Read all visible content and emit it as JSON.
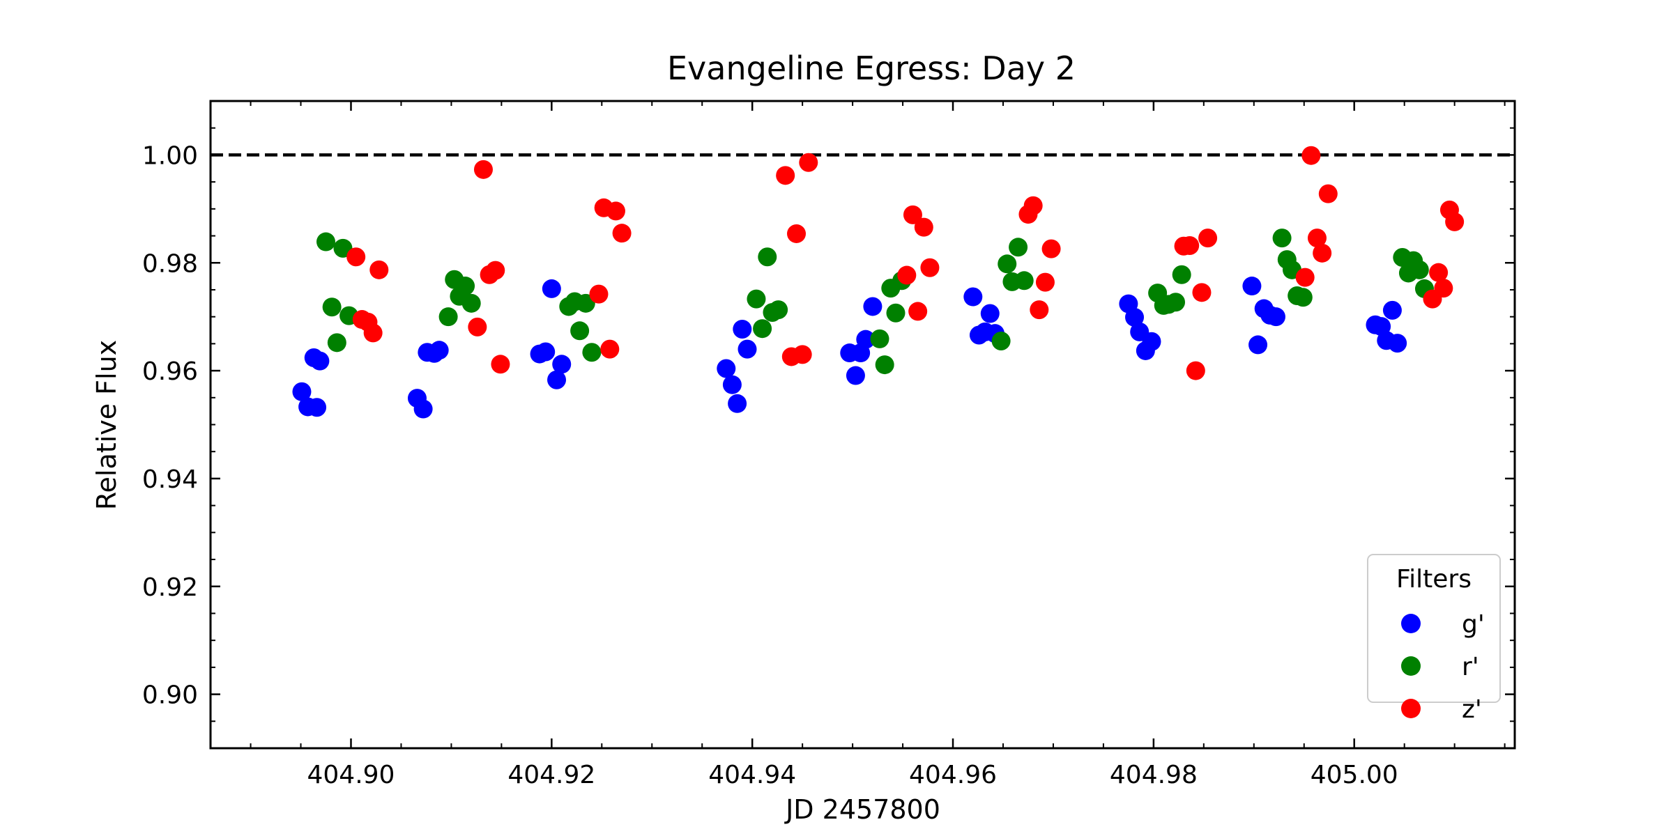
{
  "chart_data": {
    "type": "scatter",
    "title": "Evangeline Egress: Day 2",
    "xlabel": "JD 2457800",
    "ylabel": "Relative Flux",
    "xlim": [
      404.886,
      405.016
    ],
    "ylim": [
      0.89,
      1.01
    ],
    "x_ticks": [
      "404.90",
      "404.92",
      "404.94",
      "404.96",
      "404.98",
      "405.00"
    ],
    "y_ticks": [
      "0.90",
      "0.92",
      "0.94",
      "0.96",
      "0.98",
      "1.00"
    ],
    "reference_line": {
      "y": 1.0,
      "style": "dashed",
      "color": "#000000"
    },
    "legend": {
      "title": "Filters",
      "position": "lower-right"
    },
    "series": [
      {
        "name": "g'",
        "color": "#0000ff",
        "points": [
          [
            404.8951,
            0.9561
          ],
          [
            404.8957,
            0.9533
          ],
          [
            404.8963,
            0.9624
          ],
          [
            404.8966,
            0.9532
          ],
          [
            404.8969,
            0.9618
          ],
          [
            404.9066,
            0.9549
          ],
          [
            404.9072,
            0.9529
          ],
          [
            404.9076,
            0.9634
          ],
          [
            404.9083,
            0.9632
          ],
          [
            404.9088,
            0.9638
          ],
          [
            404.9188,
            0.9631
          ],
          [
            404.9194,
            0.9635
          ],
          [
            404.92,
            0.9752
          ],
          [
            404.9205,
            0.9583
          ],
          [
            404.921,
            0.9612
          ],
          [
            404.9374,
            0.9604
          ],
          [
            404.938,
            0.9574
          ],
          [
            404.9385,
            0.9539
          ],
          [
            404.939,
            0.9677
          ],
          [
            404.9395,
            0.964
          ],
          [
            404.9497,
            0.9633
          ],
          [
            404.9503,
            0.9591
          ],
          [
            404.9508,
            0.9633
          ],
          [
            404.9513,
            0.9658
          ],
          [
            404.952,
            0.9719
          ],
          [
            404.962,
            0.9737
          ],
          [
            404.9626,
            0.9666
          ],
          [
            404.9632,
            0.9672
          ],
          [
            404.9637,
            0.9706
          ],
          [
            404.9642,
            0.9669
          ],
          [
            404.9775,
            0.9724
          ],
          [
            404.9781,
            0.9699
          ],
          [
            404.9786,
            0.9672
          ],
          [
            404.9792,
            0.9637
          ],
          [
            404.9798,
            0.9654
          ],
          [
            404.9898,
            0.9757
          ],
          [
            404.9904,
            0.9648
          ],
          [
            404.991,
            0.9715
          ],
          [
            404.9916,
            0.9703
          ],
          [
            404.9922,
            0.97
          ],
          [
            405.0021,
            0.9685
          ],
          [
            405.0027,
            0.9682
          ],
          [
            405.0032,
            0.9656
          ],
          [
            405.0038,
            0.9712
          ],
          [
            405.0043,
            0.9651
          ]
        ]
      },
      {
        "name": "r'",
        "color": "#008000",
        "points": [
          [
            404.8975,
            0.9839
          ],
          [
            404.8981,
            0.9718
          ],
          [
            404.8986,
            0.9652
          ],
          [
            404.8992,
            0.9827
          ],
          [
            404.8998,
            0.9702
          ],
          [
            404.9097,
            0.97
          ],
          [
            404.9103,
            0.9769
          ],
          [
            404.9108,
            0.9738
          ],
          [
            404.9114,
            0.9757
          ],
          [
            404.912,
            0.9725
          ],
          [
            404.9217,
            0.9719
          ],
          [
            404.9223,
            0.9728
          ],
          [
            404.9228,
            0.9674
          ],
          [
            404.9234,
            0.9725
          ],
          [
            404.924,
            0.9634
          ],
          [
            404.9404,
            0.9733
          ],
          [
            404.941,
            0.9678
          ],
          [
            404.9415,
            0.9811
          ],
          [
            404.942,
            0.9708
          ],
          [
            404.9426,
            0.9713
          ],
          [
            404.9527,
            0.9659
          ],
          [
            404.9532,
            0.9611
          ],
          [
            404.9538,
            0.9753
          ],
          [
            404.9543,
            0.9707
          ],
          [
            404.9549,
            0.9767
          ],
          [
            404.9648,
            0.9655
          ],
          [
            404.9654,
            0.9798
          ],
          [
            404.9659,
            0.9765
          ],
          [
            404.9665,
            0.9829
          ],
          [
            404.9671,
            0.9767
          ],
          [
            404.9804,
            0.9744
          ],
          [
            404.981,
            0.9721
          ],
          [
            404.9815,
            0.9723
          ],
          [
            404.9822,
            0.9727
          ],
          [
            404.9828,
            0.9778
          ],
          [
            404.9928,
            0.9846
          ],
          [
            404.9933,
            0.9806
          ],
          [
            404.9938,
            0.9787
          ],
          [
            404.9943,
            0.9739
          ],
          [
            404.9949,
            0.9736
          ],
          [
            405.0048,
            0.981
          ],
          [
            405.0054,
            0.9781
          ],
          [
            405.0059,
            0.9804
          ],
          [
            405.0065,
            0.9787
          ],
          [
            405.007,
            0.9752
          ]
        ]
      },
      {
        "name": "z'",
        "color": "#ff0000",
        "points": [
          [
            404.9005,
            0.9811
          ],
          [
            404.9011,
            0.9695
          ],
          [
            404.9017,
            0.969
          ],
          [
            404.9022,
            0.967
          ],
          [
            404.9028,
            0.9787
          ],
          [
            404.9126,
            0.9681
          ],
          [
            404.9132,
            0.9973
          ],
          [
            404.9138,
            0.9778
          ],
          [
            404.9144,
            0.9786
          ],
          [
            404.9149,
            0.9612
          ],
          [
            404.9247,
            0.9742
          ],
          [
            404.9252,
            0.9902
          ],
          [
            404.9258,
            0.964
          ],
          [
            404.9264,
            0.9896
          ],
          [
            404.927,
            0.9855
          ],
          [
            404.9433,
            0.9962
          ],
          [
            404.9439,
            0.9626
          ],
          [
            404.9444,
            0.9854
          ],
          [
            404.945,
            0.963
          ],
          [
            404.9456,
            0.9986
          ],
          [
            404.9554,
            0.9777
          ],
          [
            404.956,
            0.9889
          ],
          [
            404.9565,
            0.971
          ],
          [
            404.9571,
            0.9866
          ],
          [
            404.9577,
            0.9791
          ],
          [
            404.9675,
            0.989
          ],
          [
            404.968,
            0.9906
          ],
          [
            404.9686,
            0.9713
          ],
          [
            404.9692,
            0.9764
          ],
          [
            404.9698,
            0.9826
          ],
          [
            404.983,
            0.9831
          ],
          [
            404.9836,
            0.9832
          ],
          [
            404.9842,
            0.96
          ],
          [
            404.9848,
            0.9745
          ],
          [
            404.9854,
            0.9846
          ],
          [
            404.9951,
            0.9773
          ],
          [
            404.9957,
            0.9999
          ],
          [
            404.9963,
            0.9846
          ],
          [
            404.9968,
            0.9818
          ],
          [
            404.9974,
            0.9928
          ],
          [
            405.0078,
            0.9733
          ],
          [
            405.0084,
            0.9782
          ],
          [
            405.0089,
            0.9753
          ],
          [
            405.0095,
            0.9898
          ],
          [
            405.01,
            0.9876
          ]
        ]
      }
    ]
  }
}
